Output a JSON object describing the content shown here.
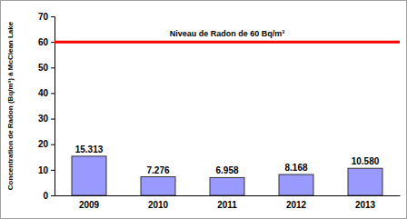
{
  "chart_data": {
    "type": "bar",
    "y_label": "Concentration de Radon (Bq/m³) à McClean Lake",
    "categories": [
      "2009",
      "2010",
      "2011",
      "2012",
      "2013"
    ],
    "values": [
      15.313,
      7.276,
      6.958,
      8.168,
      10.58
    ],
    "value_labels": [
      "15.313",
      "7.276",
      "6.958",
      "8.168",
      "10.580"
    ],
    "color": "#9999ff",
    "ylim": [
      0,
      70
    ],
    "yticks": [
      0,
      10,
      20,
      30,
      40,
      50,
      60,
      70
    ],
    "grid": false,
    "data_labels": true,
    "reference_line": {
      "value": 60,
      "label": "Niveau de Radon de 60 Bq/m³",
      "color": "#ff0000"
    }
  }
}
